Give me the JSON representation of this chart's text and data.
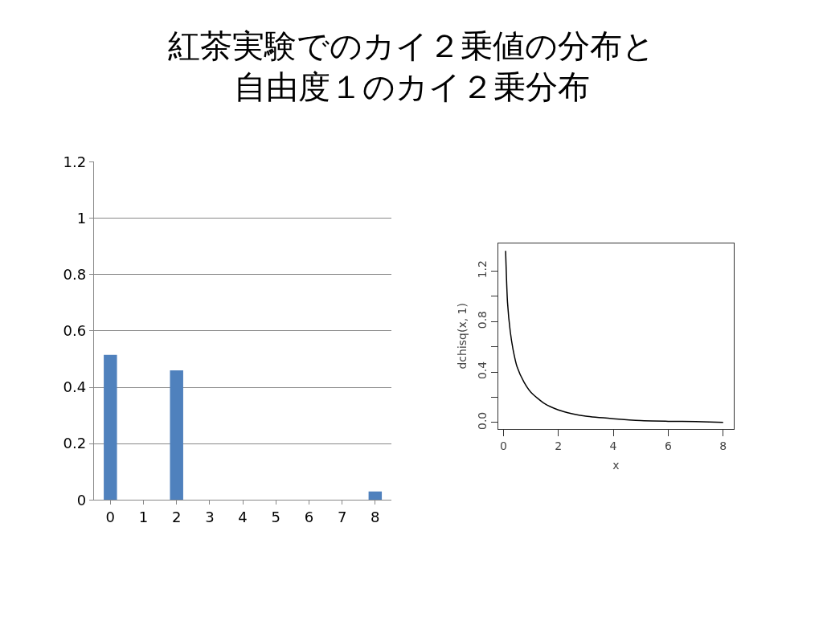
{
  "chart_data": [
    {
      "type": "bar",
      "title": "紅茶実験でのカイ２乗値の分布と",
      "subtitle": "自由度１のカイ２乗分布",
      "categories": [
        "0",
        "1",
        "2",
        "3",
        "4",
        "5",
        "6",
        "7",
        "8"
      ],
      "series": [
        {
          "color": "#4f81bd",
          "values": [
            0.515,
            0,
            0.46,
            0,
            0,
            0,
            0,
            0,
            0.03
          ]
        }
      ],
      "ylim": [
        0,
        1.2
      ],
      "yticks": [
        0,
        0.2,
        0.4,
        0.6,
        0.8,
        1,
        1.2
      ],
      "grid": "y"
    },
    {
      "type": "line",
      "xlabel": "x",
      "ylabel": "dchisq(x, 1)",
      "series": [
        {
          "color": "#000000",
          "x": [
            0.08,
            0.15,
            0.25,
            0.35,
            0.5,
            0.75,
            1,
            1.5,
            2,
            2.5,
            3,
            4,
            5,
            6,
            7,
            8
          ],
          "values": [
            1.36,
            0.95,
            0.72,
            0.58,
            0.44,
            0.32,
            0.24,
            0.15,
            0.1,
            0.07,
            0.05,
            0.03,
            0.015,
            0.01,
            0.007,
            0.002
          ]
        }
      ],
      "xlim": [
        -0.2,
        8.4
      ],
      "ylim": [
        -0.05,
        1.42
      ],
      "xticks": [
        0,
        2,
        4,
        6,
        8
      ],
      "yticks": [
        {
          "value": 0,
          "label": "0.0"
        },
        {
          "value": 0.2,
          "label": null
        },
        {
          "value": 0.4,
          "label": "0.4"
        },
        {
          "value": 0.6,
          "label": null
        },
        {
          "value": 0.8,
          "label": "0.8"
        },
        {
          "value": 1,
          "label": null
        },
        {
          "value": 1.2,
          "label": "1.2"
        }
      ],
      "grid": false,
      "marker": "none",
      "line_style": "solid"
    }
  ]
}
